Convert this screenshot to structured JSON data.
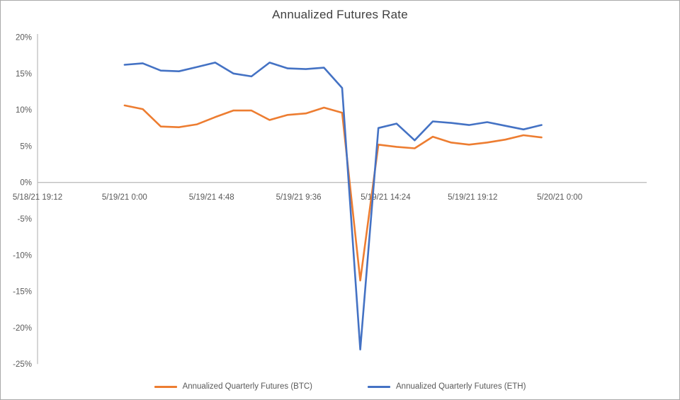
{
  "colors": {
    "axis_line": "#bfbfbf",
    "tick_text": "#595959",
    "title_text": "#3f3f3f",
    "background": "#ffffff",
    "btc_line": "#ED7D31",
    "eth_line": "#4472C4"
  },
  "chart_data": {
    "type": "line",
    "title": "Annualized Futures Rate",
    "grid": "off",
    "legend_position": "bottom",
    "x_axis": {
      "range_hours": [
        -4.8,
        28.8
      ],
      "ticks": [
        {
          "label": "5/18/21 19:12",
          "hours": -4.8
        },
        {
          "label": "5/19/21 0:00",
          "hours": 0
        },
        {
          "label": "5/19/21 4:48",
          "hours": 4.8
        },
        {
          "label": "5/19/21 9:36",
          "hours": 9.6
        },
        {
          "label": "5/19/21 14:24",
          "hours": 14.4
        },
        {
          "label": "5/19/21 19:12",
          "hours": 19.2
        },
        {
          "label": "5/20/21 0:00",
          "hours": 24
        }
      ]
    },
    "y_axis": {
      "range": [
        -25,
        20
      ],
      "ticks": [
        {
          "label": "20%",
          "value": 20
        },
        {
          "label": "15%",
          "value": 15
        },
        {
          "label": "10%",
          "value": 10
        },
        {
          "label": "5%",
          "value": 5
        },
        {
          "label": "0%",
          "value": 0
        },
        {
          "label": "-5%",
          "value": -5
        },
        {
          "label": "-10%",
          "value": -10
        },
        {
          "label": "-15%",
          "value": -15
        },
        {
          "label": "-20%",
          "value": -20
        },
        {
          "label": "-25%",
          "value": -25
        }
      ]
    },
    "x_hours": [
      0,
      1,
      2,
      3,
      4,
      5,
      6,
      7,
      8,
      9,
      10,
      11,
      12,
      13,
      14,
      15,
      16,
      17,
      18,
      19,
      20,
      21,
      22,
      23
    ],
    "series": [
      {
        "name": "Annualized Quarterly Futures (BTC)",
        "color": "#ED7D31",
        "values": [
          10.6,
          10.1,
          7.7,
          7.6,
          8.0,
          9.0,
          9.9,
          9.9,
          8.6,
          9.3,
          9.5,
          10.3,
          9.6,
          -13.5,
          5.2,
          4.9,
          4.7,
          6.3,
          5.5,
          5.2,
          5.5,
          5.9,
          6.5,
          6.2
        ]
      },
      {
        "name": "Annualized Quarterly Futures (ETH)",
        "color": "#4472C4",
        "values": [
          16.2,
          16.4,
          15.4,
          15.3,
          15.9,
          16.5,
          15.0,
          14.6,
          16.5,
          15.7,
          15.6,
          15.8,
          13.0,
          -23.0,
          7.5,
          8.1,
          5.8,
          8.4,
          8.2,
          7.9,
          8.3,
          7.8,
          7.3,
          7.9
        ]
      }
    ]
  }
}
